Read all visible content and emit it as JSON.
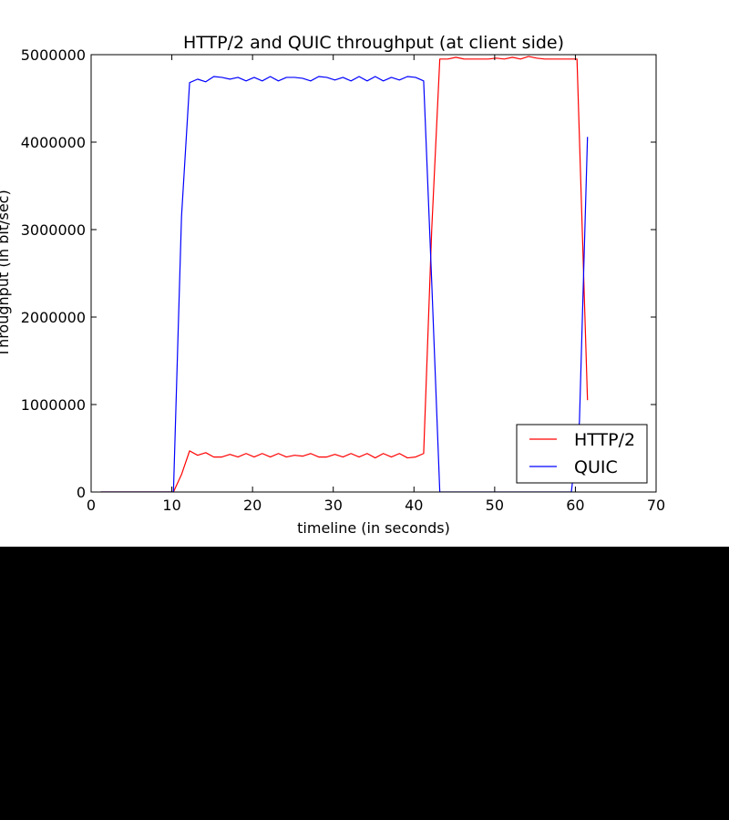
{
  "chart_data": {
    "type": "line",
    "title": "HTTP/2 and QUIC throughput (at client side)",
    "xlabel": "timeline (in seconds)",
    "ylabel": "Throughput (in bit/sec)",
    "xlim": [
      0,
      70
    ],
    "ylim": [
      0,
      5000000
    ],
    "xticks": [
      0,
      10,
      20,
      30,
      40,
      50,
      60,
      70
    ],
    "yticks": [
      0,
      1000000,
      2000000,
      3000000,
      4000000,
      5000000
    ],
    "xtick_labels": [
      "0",
      "10",
      "20",
      "30",
      "40",
      "50",
      "60",
      "70"
    ],
    "ytick_labels": [
      "0",
      "1000000",
      "2000000",
      "3000000",
      "4000000",
      "5000000"
    ],
    "legend_position": "lower-right",
    "series": [
      {
        "name": "HTTP/2",
        "color": "#ff0000",
        "x": [
          1.2,
          3,
          5,
          7,
          9,
          10.2,
          11.2,
          12.2,
          13.2,
          14.2,
          15.2,
          16.2,
          17.2,
          18.2,
          19.2,
          20.2,
          21.2,
          22.2,
          23.2,
          24.2,
          25.2,
          26.2,
          27.2,
          28.2,
          29.2,
          30.2,
          31.2,
          32.2,
          33.2,
          34.2,
          35.2,
          36.2,
          37.2,
          38.2,
          39.2,
          40.2,
          41.2,
          42.2,
          43.2,
          44.2,
          45.2,
          46.2,
          47.2,
          48.2,
          49.2,
          50.2,
          51.2,
          52.2,
          53.2,
          54.2,
          55.2,
          56.2,
          57.2,
          58.2,
          59.2,
          60.2,
          61.5
        ],
        "y": [
          0,
          0,
          0,
          0,
          0,
          0,
          200000,
          470000,
          420000,
          450000,
          400000,
          400000,
          430000,
          400000,
          440000,
          400000,
          440000,
          400000,
          440000,
          400000,
          420000,
          410000,
          440000,
          400000,
          400000,
          430000,
          400000,
          440000,
          400000,
          440000,
          390000,
          440000,
          400000,
          440000,
          390000,
          400000,
          440000,
          3000000,
          4950000,
          4950000,
          4970000,
          4950000,
          4950000,
          4950000,
          4950000,
          4960000,
          4950000,
          4970000,
          4950000,
          4980000,
          4960000,
          4950000,
          4950000,
          4950000,
          4950000,
          4950000,
          1050000
        ]
      },
      {
        "name": "QUIC",
        "color": "#0000ff",
        "x": [
          1.2,
          3,
          5,
          7,
          9,
          10.2,
          11.2,
          12.2,
          13.2,
          14.2,
          15.2,
          16.2,
          17.2,
          18.2,
          19.2,
          20.2,
          21.2,
          22.2,
          23.2,
          24.2,
          25.2,
          26.2,
          27.2,
          28.2,
          29.2,
          30.2,
          31.2,
          32.2,
          33.2,
          34.2,
          35.2,
          36.2,
          37.2,
          38.2,
          39.2,
          40.2,
          41.2,
          42.2,
          43.2,
          44.2,
          46,
          48,
          50,
          52,
          54,
          56,
          58,
          59.5,
          60.5,
          61.5
        ],
        "y": [
          0,
          0,
          0,
          0,
          0,
          0,
          3150000,
          4680000,
          4720000,
          4690000,
          4750000,
          4740000,
          4720000,
          4740000,
          4700000,
          4740000,
          4700000,
          4750000,
          4700000,
          4740000,
          4740000,
          4730000,
          4700000,
          4750000,
          4740000,
          4710000,
          4740000,
          4700000,
          4750000,
          4700000,
          4750000,
          4700000,
          4740000,
          4710000,
          4750000,
          4740000,
          4700000,
          2400000,
          0,
          0,
          0,
          0,
          0,
          0,
          0,
          0,
          0,
          0,
          800000,
          4060000
        ]
      }
    ]
  }
}
